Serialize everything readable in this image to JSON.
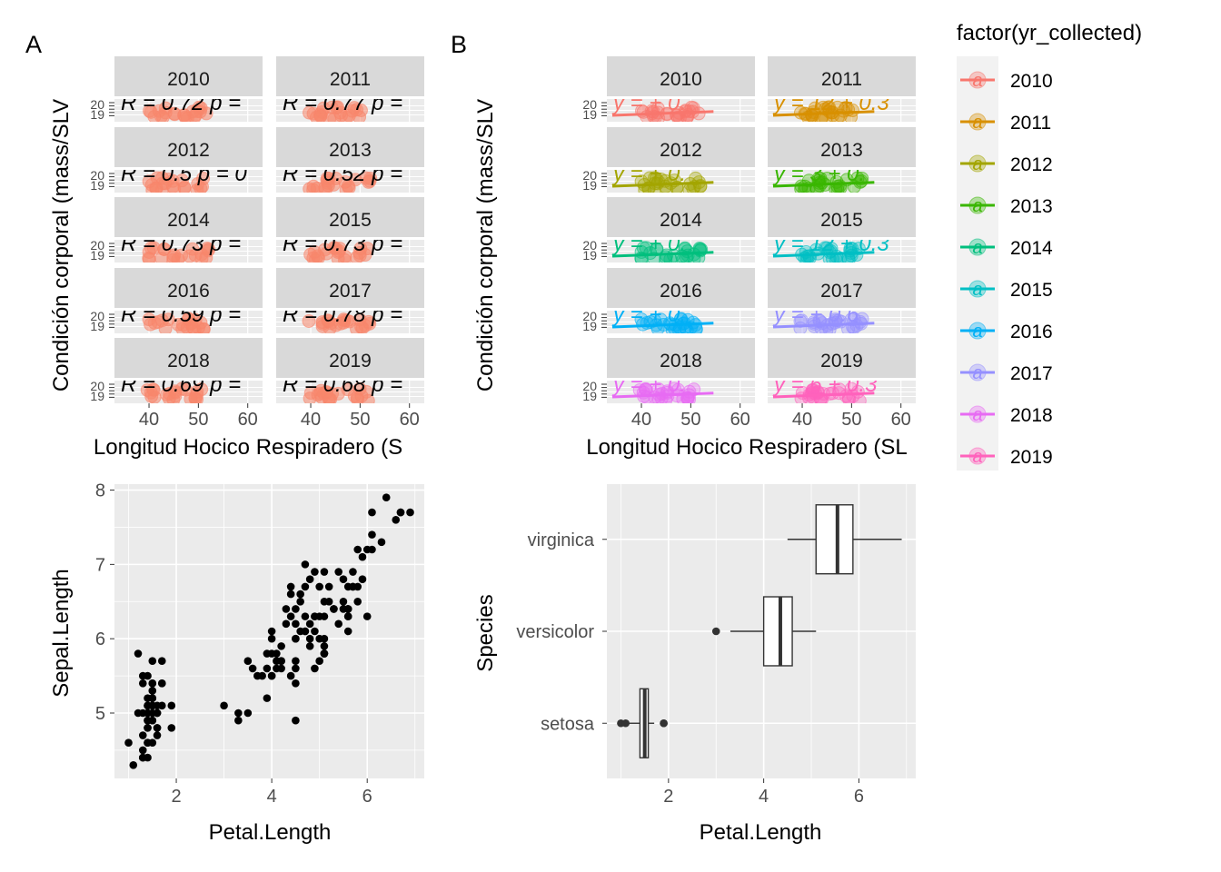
{
  "labels": {
    "panel_a": "A",
    "panel_b": "B"
  },
  "colors": {
    "panel_bg": "#EBEBEB",
    "strip_bg": "#D9D9D9",
    "grid": "#FFFFFF",
    "axis_text": "#4D4D4D",
    "panel_a_points": "#F8866C"
  },
  "legend": {
    "title": "factor(yr_collected)",
    "items": [
      {
        "label": "2010",
        "color": "#F8766D"
      },
      {
        "label": "2011",
        "color": "#D89000"
      },
      {
        "label": "2012",
        "color": "#A3A500"
      },
      {
        "label": "2013",
        "color": "#39B600"
      },
      {
        "label": "2014",
        "color": "#00BF7D"
      },
      {
        "label": "2015",
        "color": "#00BFC4"
      },
      {
        "label": "2016",
        "color": "#00B0F6"
      },
      {
        "label": "2017",
        "color": "#9590FF"
      },
      {
        "label": "2018",
        "color": "#E76BF3"
      },
      {
        "label": "2019",
        "color": "#FF62BC"
      }
    ]
  },
  "chart_data": [
    {
      "type": "scatter",
      "panel": "A",
      "facet_by": "year",
      "xlabel": "Longitud Hocico Respiradero (S",
      "ylabel": "Condición corporal (mass/SLV",
      "x_ticks": [
        "40",
        "50",
        "60"
      ],
      "x_range": [
        33,
        63
      ],
      "y_ticks": [
        "20",
        "19"
      ],
      "facets": [
        {
          "year": "2010",
          "annotation": "R = 0.72 p ="
        },
        {
          "year": "2011",
          "annotation": "R = 0.77 p ="
        },
        {
          "year": "2012",
          "annotation": "R = 0.5 p = 0"
        },
        {
          "year": "2013",
          "annotation": "R = 0.52 p ="
        },
        {
          "year": "2014",
          "annotation": "R = 0.73 p ="
        },
        {
          "year": "2015",
          "annotation": "R = 0.73 p ="
        },
        {
          "year": "2016",
          "annotation": "R = 0.59 p ="
        },
        {
          "year": "2017",
          "annotation": "R = 0.78 p ="
        },
        {
          "year": "2018",
          "annotation": "R = 0.69 p ="
        },
        {
          "year": "2019",
          "annotation": "R = 0.68 p ="
        }
      ]
    },
    {
      "type": "scatter",
      "panel": "B",
      "facet_by": "year",
      "xlabel": "Longitud Hocico Respiradero (SL",
      "ylabel": "Condición corporal (mass/SLV",
      "x_ticks": [
        "40",
        "50",
        "60"
      ],
      "x_range": [
        33,
        63
      ],
      "y_ticks": [
        "20",
        "19"
      ],
      "facets": [
        {
          "year": "2010",
          "annotation": "y = + 0."
        },
        {
          "year": "2011",
          "annotation": "y = 12 + 0.3"
        },
        {
          "year": "2012",
          "annotation": "y = + 0."
        },
        {
          "year": "2013",
          "annotation": "y = 3 + 0."
        },
        {
          "year": "2014",
          "annotation": "y = + 0."
        },
        {
          "year": "2015",
          "annotation": "y = 12 + 0.3"
        },
        {
          "year": "2016",
          "annotation": "y = + 0."
        },
        {
          "year": "2017",
          "annotation": "y = + 0.6"
        },
        {
          "year": "2018",
          "annotation": "y = + 0."
        },
        {
          "year": "2019",
          "annotation": "y = 6 + 0.3"
        }
      ]
    },
    {
      "type": "scatter",
      "panel": "C",
      "xlabel": "Petal.Length",
      "ylabel": "Sepal.Length",
      "x_ticks": [
        2,
        4,
        6
      ],
      "y_ticks": [
        5,
        6,
        7,
        8
      ],
      "xlim": [
        0.705,
        7.195
      ],
      "ylim": [
        4.12,
        8.08
      ],
      "x": [
        1.4,
        1.4,
        1.3,
        1.5,
        1.4,
        1.7,
        1.4,
        1.5,
        1.4,
        1.5,
        1.5,
        1.6,
        1.4,
        1.1,
        1.2,
        1.5,
        1.3,
        1.4,
        1.7,
        1.5,
        1.7,
        1.5,
        1.0,
        1.7,
        1.9,
        1.6,
        1.6,
        1.5,
        1.4,
        1.6,
        1.6,
        1.5,
        1.5,
        1.4,
        1.5,
        1.2,
        1.3,
        1.4,
        1.3,
        1.5,
        1.3,
        1.3,
        1.3,
        1.6,
        1.9,
        1.4,
        1.6,
        1.4,
        1.5,
        1.4,
        4.7,
        4.5,
        4.9,
        4.0,
        4.6,
        4.5,
        4.7,
        3.3,
        4.6,
        3.9,
        3.5,
        4.2,
        4.0,
        4.7,
        3.6,
        4.4,
        4.5,
        4.1,
        4.5,
        3.9,
        4.8,
        4.0,
        4.9,
        4.7,
        4.3,
        4.4,
        4.8,
        5.0,
        4.5,
        3.5,
        3.8,
        3.7,
        3.9,
        5.1,
        4.5,
        4.5,
        4.7,
        4.4,
        4.1,
        4.0,
        4.4,
        4.6,
        4.0,
        3.3,
        4.2,
        4.2,
        4.2,
        4.3,
        3.0,
        4.1,
        6.0,
        5.1,
        5.9,
        5.6,
        5.8,
        6.6,
        4.5,
        6.3,
        5.8,
        6.1,
        5.1,
        5.3,
        5.5,
        5.0,
        5.1,
        5.3,
        5.5,
        6.7,
        6.9,
        5.0,
        5.7,
        4.9,
        6.7,
        4.9,
        5.7,
        6.0,
        4.8,
        4.9,
        5.6,
        5.8,
        6.1,
        6.4,
        5.6,
        5.1,
        5.6,
        6.1,
        5.6,
        5.5,
        4.8,
        5.4,
        5.6,
        5.1,
        5.1,
        5.9,
        5.7,
        5.2,
        5.0,
        5.2,
        5.4,
        5.1
      ],
      "y": [
        5.1,
        4.9,
        4.7,
        4.6,
        5.0,
        5.4,
        4.6,
        5.0,
        4.4,
        4.9,
        5.4,
        4.8,
        4.8,
        4.3,
        5.8,
        5.7,
        5.4,
        5.1,
        5.7,
        5.1,
        5.4,
        5.1,
        4.6,
        5.1,
        4.8,
        5.0,
        5.0,
        5.2,
        5.2,
        4.7,
        4.8,
        5.4,
        5.2,
        5.5,
        4.9,
        5.0,
        5.5,
        4.9,
        4.4,
        5.1,
        5.0,
        4.5,
        4.4,
        5.0,
        5.1,
        4.8,
        5.1,
        4.6,
        5.3,
        5.0,
        7.0,
        6.4,
        6.9,
        5.5,
        6.5,
        5.7,
        6.3,
        4.9,
        6.6,
        5.2,
        5.0,
        5.9,
        6.0,
        6.1,
        5.6,
        6.7,
        5.6,
        5.8,
        6.2,
        5.6,
        5.9,
        6.1,
        6.3,
        6.1,
        6.4,
        6.6,
        6.8,
        6.7,
        6.0,
        5.7,
        5.5,
        5.5,
        5.8,
        6.0,
        5.4,
        6.0,
        6.7,
        6.3,
        5.6,
        5.5,
        5.5,
        6.1,
        5.8,
        5.0,
        5.6,
        5.7,
        5.7,
        6.2,
        5.1,
        5.7,
        6.3,
        5.8,
        7.1,
        6.3,
        6.5,
        7.6,
        4.9,
        7.3,
        6.7,
        7.2,
        6.5,
        6.4,
        6.8,
        5.7,
        5.8,
        6.4,
        6.5,
        7.7,
        7.7,
        6.0,
        6.9,
        5.6,
        7.7,
        6.3,
        6.7,
        7.2,
        6.2,
        6.1,
        6.4,
        7.2,
        7.4,
        7.9,
        6.4,
        6.3,
        6.1,
        7.7,
        6.3,
        6.4,
        6.0,
        6.9,
        6.7,
        6.9,
        5.8,
        6.8,
        6.7,
        6.7,
        6.3,
        6.5,
        6.2,
        5.9
      ]
    },
    {
      "type": "box",
      "panel": "D",
      "xlabel": "Petal.Length",
      "ylabel": "Species",
      "x_ticks": [
        2,
        4,
        6
      ],
      "xlim": [
        0.705,
        7.195
      ],
      "categories": [
        "setosa",
        "versicolor",
        "virginica"
      ],
      "boxes": [
        {
          "name": "setosa",
          "min": 1.1,
          "q1": 1.4,
          "median": 1.5,
          "q3": 1.575,
          "max": 1.7,
          "outliers": [
            1.0,
            1.1,
            1.9,
            1.9
          ]
        },
        {
          "name": "versicolor",
          "min": 3.3,
          "q1": 4.0,
          "median": 4.35,
          "q3": 4.6,
          "max": 5.1,
          "outliers": [
            3.0
          ]
        },
        {
          "name": "virginica",
          "min": 4.5,
          "q1": 5.1,
          "median": 5.55,
          "q3": 5.875,
          "max": 6.9,
          "outliers": []
        }
      ]
    }
  ]
}
